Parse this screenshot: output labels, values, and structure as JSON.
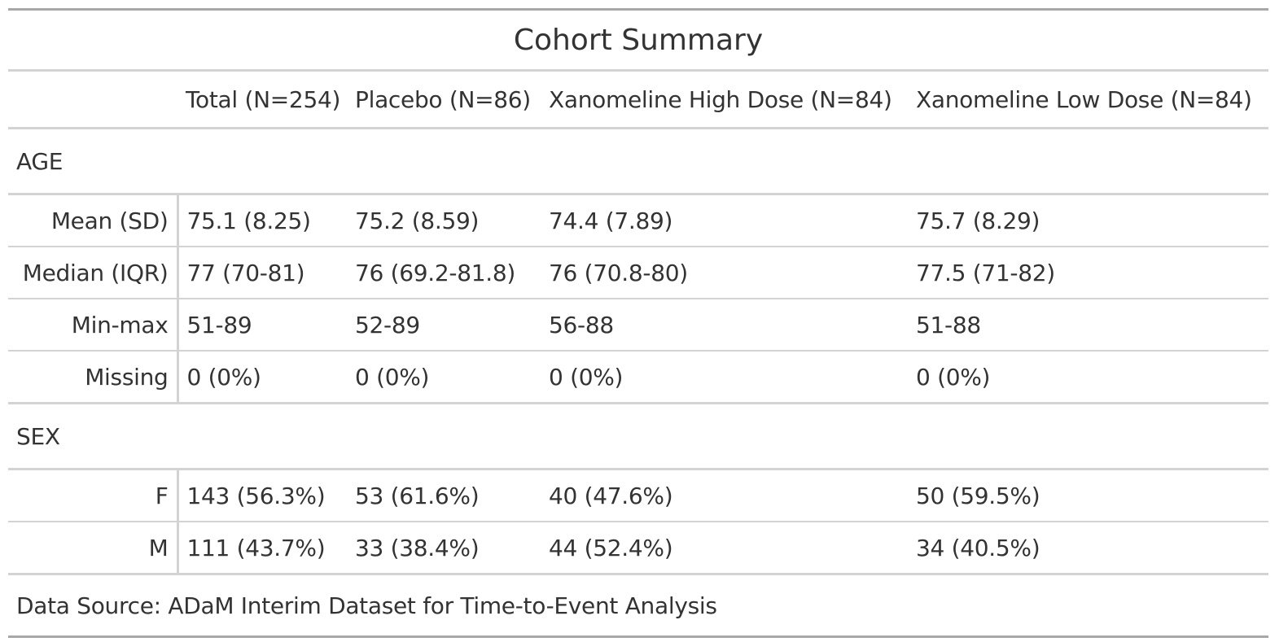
{
  "table": {
    "title": "Cohort Summary",
    "columns": [
      "",
      "Total (N=254)",
      "Placebo (N=86)",
      "Xanomeline High Dose (N=84)",
      "Xanomeline Low Dose (N=84)"
    ],
    "groups": [
      {
        "label": "AGE",
        "rows": [
          {
            "stat": "Mean (SD)",
            "values": [
              "75.1 (8.25)",
              "75.2 (8.59)",
              "74.4 (7.89)",
              "75.7 (8.29)"
            ]
          },
          {
            "stat": "Median (IQR)",
            "values": [
              "77 (70-81)",
              "76 (69.2-81.8)",
              "76 (70.8-80)",
              "77.5 (71-82)"
            ]
          },
          {
            "stat": "Min-max",
            "values": [
              "51-89",
              "52-89",
              "56-88",
              "51-88"
            ]
          },
          {
            "stat": "Missing",
            "values": [
              "0 (0%)",
              "0 (0%)",
              "0 (0%)",
              "0 (0%)"
            ]
          }
        ]
      },
      {
        "label": "SEX",
        "rows": [
          {
            "stat": "F",
            "values": [
              "143 (56.3%)",
              "53 (61.6%)",
              "40 (47.6%)",
              "50 (59.5%)"
            ]
          },
          {
            "stat": "M",
            "values": [
              "111 (43.7%)",
              "33 (38.4%)",
              "44 (52.4%)",
              "34 (40.5%)"
            ]
          }
        ]
      }
    ],
    "footnote": "Data Source: ADaM Interim Dataset for Time-to-Event Analysis"
  },
  "colors": {
    "text": "#333333",
    "outer_border": "#a8a8a8",
    "inner_border": "#d3d3d3"
  }
}
